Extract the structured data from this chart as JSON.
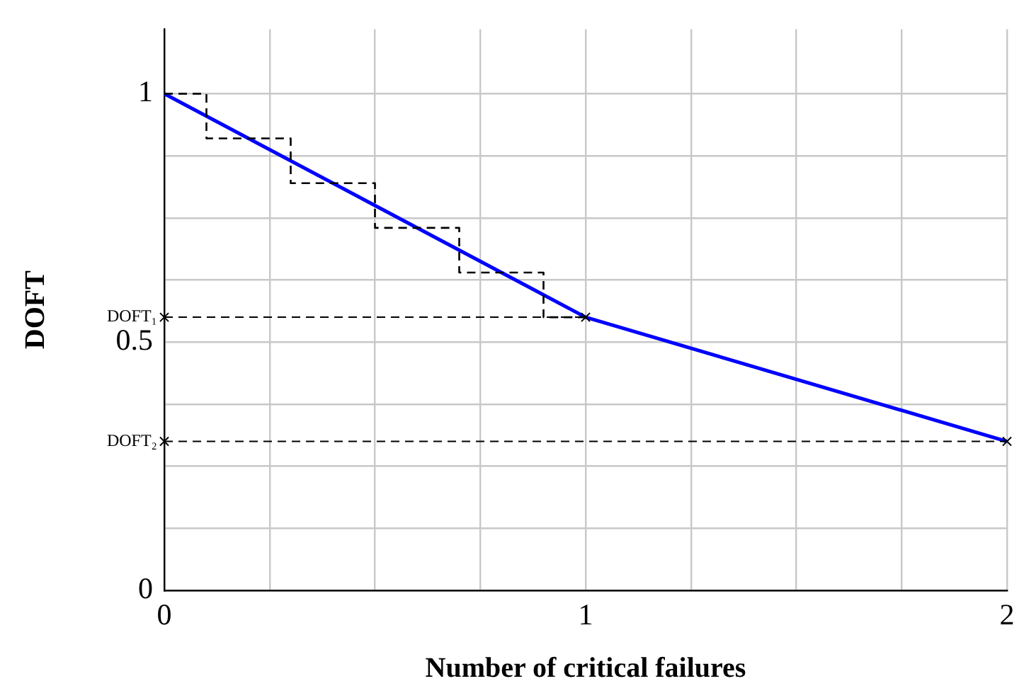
{
  "chart_data": {
    "type": "line",
    "xlabel": "Number of critical failures",
    "ylabel": "DOFT",
    "xlim": [
      0,
      2
    ],
    "ylim": [
      0,
      1.13
    ],
    "xticks": [
      0,
      {
        "value": 0.25,
        "label": null
      },
      {
        "value": 0.5,
        "label": null
      },
      {
        "value": 0.75,
        "label": null
      },
      1,
      {
        "value": 1.25,
        "label": null
      },
      {
        "value": 1.5,
        "label": null
      },
      {
        "value": 1.75,
        "label": null
      },
      2
    ],
    "yticks": [
      0,
      {
        "value": 0.125,
        "label": null
      },
      {
        "value": 0.25,
        "label": null
      },
      {
        "value": 0.375,
        "label": null
      },
      0.5,
      {
        "value": 0.625,
        "label": null
      },
      {
        "value": 0.75,
        "label": null
      },
      {
        "value": 0.875,
        "label": null
      },
      1
    ],
    "grid": true,
    "legend": false,
    "marker": "none",
    "series": [
      {
        "type": "line",
        "color": "#0000ff",
        "line_style": "solid",
        "x": [
          0,
          1,
          2
        ],
        "values": [
          1,
          0.55,
          0.3
        ]
      },
      {
        "type": "step",
        "color": "#000000",
        "line_style": "dashed",
        "x": [
          0,
          0.1,
          0.3,
          0.5,
          0.7,
          0.9,
          1
        ],
        "values": [
          1,
          0.91,
          0.82,
          0.73,
          0.64,
          0.55,
          0.55
        ]
      }
    ],
    "ref_lines": [
      {
        "axis": "y",
        "value": 0.55,
        "label": "DOFT₁",
        "color": "#000000",
        "line_style": "dashed"
      },
      {
        "axis": "y",
        "value": 0.3,
        "label": "DOFT₂",
        "color": "#000000",
        "line_style": "dashed"
      }
    ]
  }
}
